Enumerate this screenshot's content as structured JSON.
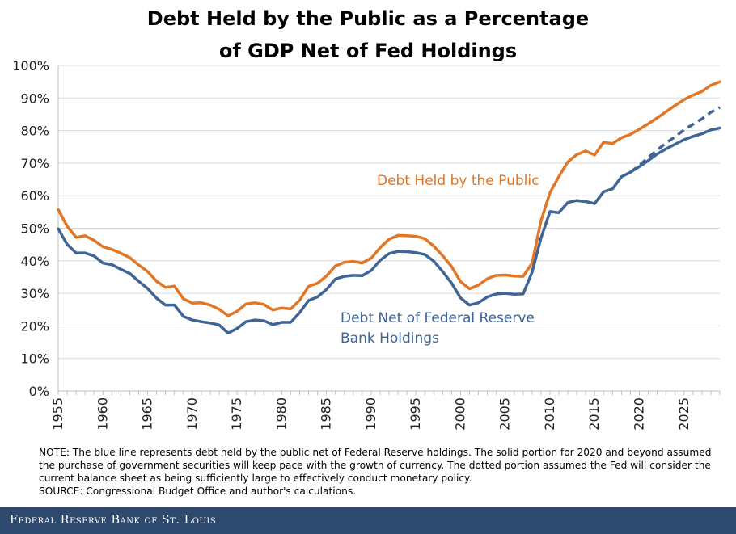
{
  "chart_data": {
    "type": "line",
    "title_lines": [
      "Debt Held by the Public as a Percentage",
      "of GDP Net of Fed Holdings"
    ],
    "xlabel": "",
    "ylabel": "",
    "xlim": [
      1955,
      2029
    ],
    "ylim": [
      0,
      100
    ],
    "x_ticks": [
      1955,
      1960,
      1965,
      1970,
      1975,
      1980,
      1985,
      1990,
      1995,
      2000,
      2005,
      2010,
      2015,
      2020,
      2025
    ],
    "y_ticks": [
      0,
      10,
      20,
      30,
      40,
      50,
      60,
      70,
      80,
      90,
      100
    ],
    "y_tick_labels": [
      "0%",
      "10%",
      "20%",
      "30%",
      "40%",
      "50%",
      "60%",
      "70%",
      "80%",
      "90%",
      "100%"
    ],
    "grid": "horizontal",
    "series": [
      {
        "name": "Debt Held by the Public",
        "label": "Debt Held by the Public",
        "color": "#e07626",
        "style": "solid",
        "x": [
          1955,
          1956,
          1957,
          1958,
          1959,
          1960,
          1961,
          1962,
          1963,
          1964,
          1965,
          1966,
          1967,
          1968,
          1969,
          1970,
          1971,
          1972,
          1973,
          1974,
          1975,
          1976,
          1977,
          1978,
          1979,
          1980,
          1981,
          1982,
          1983,
          1984,
          1985,
          1986,
          1987,
          1988,
          1989,
          1990,
          1991,
          1992,
          1993,
          1994,
          1995,
          1996,
          1997,
          1998,
          1999,
          2000,
          2001,
          2002,
          2003,
          2004,
          2005,
          2006,
          2007,
          2008,
          2009,
          2010,
          2011,
          2012,
          2013,
          2014,
          2015,
          2016,
          2017,
          2018,
          2019,
          2020,
          2021,
          2022,
          2023,
          2024,
          2025,
          2026,
          2027,
          2028,
          2029
        ],
        "values": [
          55.7,
          50.6,
          47.2,
          47.7,
          46.3,
          44.3,
          43.5,
          42.3,
          41.0,
          38.7,
          36.7,
          33.7,
          31.8,
          32.2,
          28.3,
          27.0,
          27.1,
          26.4,
          25.1,
          23.1,
          24.5,
          26.7,
          27.1,
          26.6,
          24.9,
          25.5,
          25.2,
          27.9,
          32.1,
          33.1,
          35.3,
          38.4,
          39.5,
          39.8,
          39.3,
          40.8,
          44.0,
          46.6,
          47.8,
          47.7,
          47.5,
          46.8,
          44.5,
          41.6,
          38.2,
          33.6,
          31.4,
          32.5,
          34.5,
          35.5,
          35.6,
          35.3,
          35.2,
          39.3,
          52.3,
          60.9,
          65.9,
          70.4,
          72.6,
          73.7,
          72.5,
          76.4,
          76.0,
          77.8,
          78.8,
          80.4,
          82.1,
          83.9,
          85.8,
          87.7,
          89.5,
          90.9,
          92.0,
          93.9,
          95.0
        ]
      },
      {
        "name": "Debt Net of Federal Reserve Bank Holdings",
        "label_lines": [
          "Debt Net of Federal Reserve",
          "Bank Holdings"
        ],
        "color": "#3f6597",
        "style": "solid",
        "x": [
          1955,
          1956,
          1957,
          1958,
          1959,
          1960,
          1961,
          1962,
          1963,
          1964,
          1965,
          1966,
          1967,
          1968,
          1969,
          1970,
          1971,
          1972,
          1973,
          1974,
          1975,
          1976,
          1977,
          1978,
          1979,
          1980,
          1981,
          1982,
          1983,
          1984,
          1985,
          1986,
          1987,
          1988,
          1989,
          1990,
          1991,
          1992,
          1993,
          1994,
          1995,
          1996,
          1997,
          1998,
          1999,
          2000,
          2001,
          2002,
          2003,
          2004,
          2005,
          2006,
          2007,
          2008,
          2009,
          2010,
          2011,
          2012,
          2013,
          2014,
          2015,
          2016,
          2017,
          2018,
          2019,
          2020,
          2021,
          2022,
          2023,
          2024,
          2025,
          2026,
          2027,
          2028,
          2029
        ],
        "values": [
          49.8,
          45.0,
          42.4,
          42.4,
          41.5,
          39.3,
          38.8,
          37.4,
          36.1,
          33.7,
          31.5,
          28.5,
          26.4,
          26.4,
          22.9,
          21.8,
          21.3,
          20.9,
          20.3,
          17.8,
          19.2,
          21.3,
          21.8,
          21.6,
          20.4,
          21.1,
          21.1,
          24.1,
          27.8,
          28.9,
          31.2,
          34.4,
          35.2,
          35.5,
          35.4,
          37.0,
          40.1,
          42.2,
          42.9,
          42.8,
          42.5,
          41.9,
          39.9,
          36.7,
          33.1,
          28.6,
          26.4,
          27.1,
          28.9,
          29.8,
          30.0,
          29.7,
          29.8,
          36.5,
          47.0,
          55.1,
          54.8,
          57.9,
          58.5,
          58.2,
          57.6,
          61.2,
          62.1,
          65.8,
          67.2,
          68.9,
          70.8,
          72.8,
          74.4,
          75.8,
          77.2,
          78.2,
          79.0,
          80.2,
          80.8
        ]
      },
      {
        "name": "Debt Net of Federal Reserve Bank Holdings (dotted projection)",
        "color": "#3f6597",
        "style": "dashed",
        "x": [
          2019,
          2020,
          2021,
          2022,
          2023,
          2024,
          2025,
          2026,
          2027,
          2028,
          2029
        ],
        "values": [
          67.2,
          69.3,
          71.7,
          74.0,
          76.2,
          78.1,
          80.2,
          81.9,
          83.6,
          85.6,
          87.1
        ]
      }
    ]
  },
  "notes": {
    "text": "NOTE: The blue line represents debt held by the public net of Federal Reserve holdings. The solid portion for 2020 and beyond assumed the purchase of government securities will keep pace with the growth of currency. The dotted portion assumed the Fed will consider the current balance sheet as being sufficiently large to effectively conduct monetary policy.",
    "source": "SOURCE: Congressional Budget Office and author's calculations."
  },
  "footer": {
    "brand": "Federal Reserve Bank of St. Louis"
  }
}
